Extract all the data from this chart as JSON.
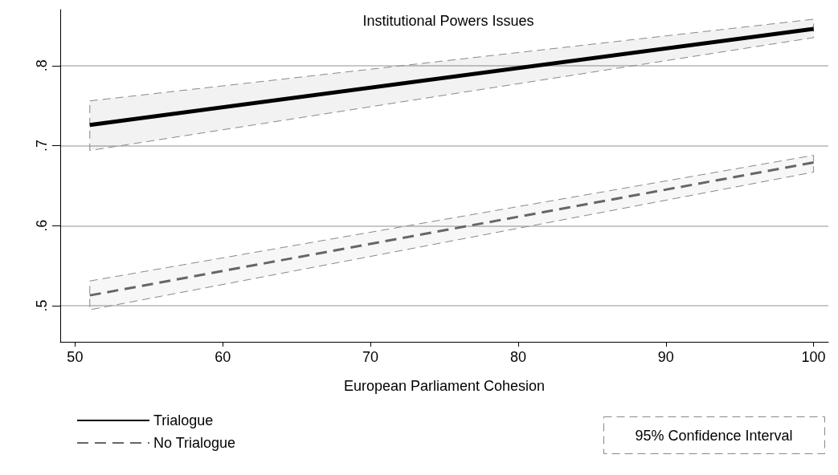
{
  "chart_data": {
    "type": "line",
    "title": "Institutional Powers Issues",
    "xlabel": "European Parliament Cohesion",
    "x": [
      51,
      100
    ],
    "series": [
      {
        "name": "Trialogue",
        "color": "#000000",
        "values": [
          0.726,
          0.846
        ],
        "lower": [
          0.694,
          0.835
        ],
        "upper": [
          0.756,
          0.858
        ],
        "line_style": "solid"
      },
      {
        "name": "No Trialogue",
        "color": "#666666",
        "values": [
          0.513,
          0.679
        ],
        "lower": [
          0.495,
          0.667
        ],
        "upper": [
          0.531,
          0.688
        ],
        "line_style": "dashed"
      }
    ],
    "xlim": [
      49,
      101
    ],
    "xticks": [
      50,
      60,
      70,
      80,
      90,
      100
    ],
    "ylim": [
      0.455,
      0.87
    ],
    "yticks": [
      {
        "value": 0.5,
        "label": ".5"
      },
      {
        "value": 0.6,
        "label": ".6"
      },
      {
        "value": 0.7,
        "label": ".7"
      },
      {
        "value": 0.8,
        "label": ".8"
      }
    ],
    "grid": "y",
    "legend": "bottom left",
    "marker": "none",
    "annotations": [
      "95% Confidence Interval"
    ]
  }
}
